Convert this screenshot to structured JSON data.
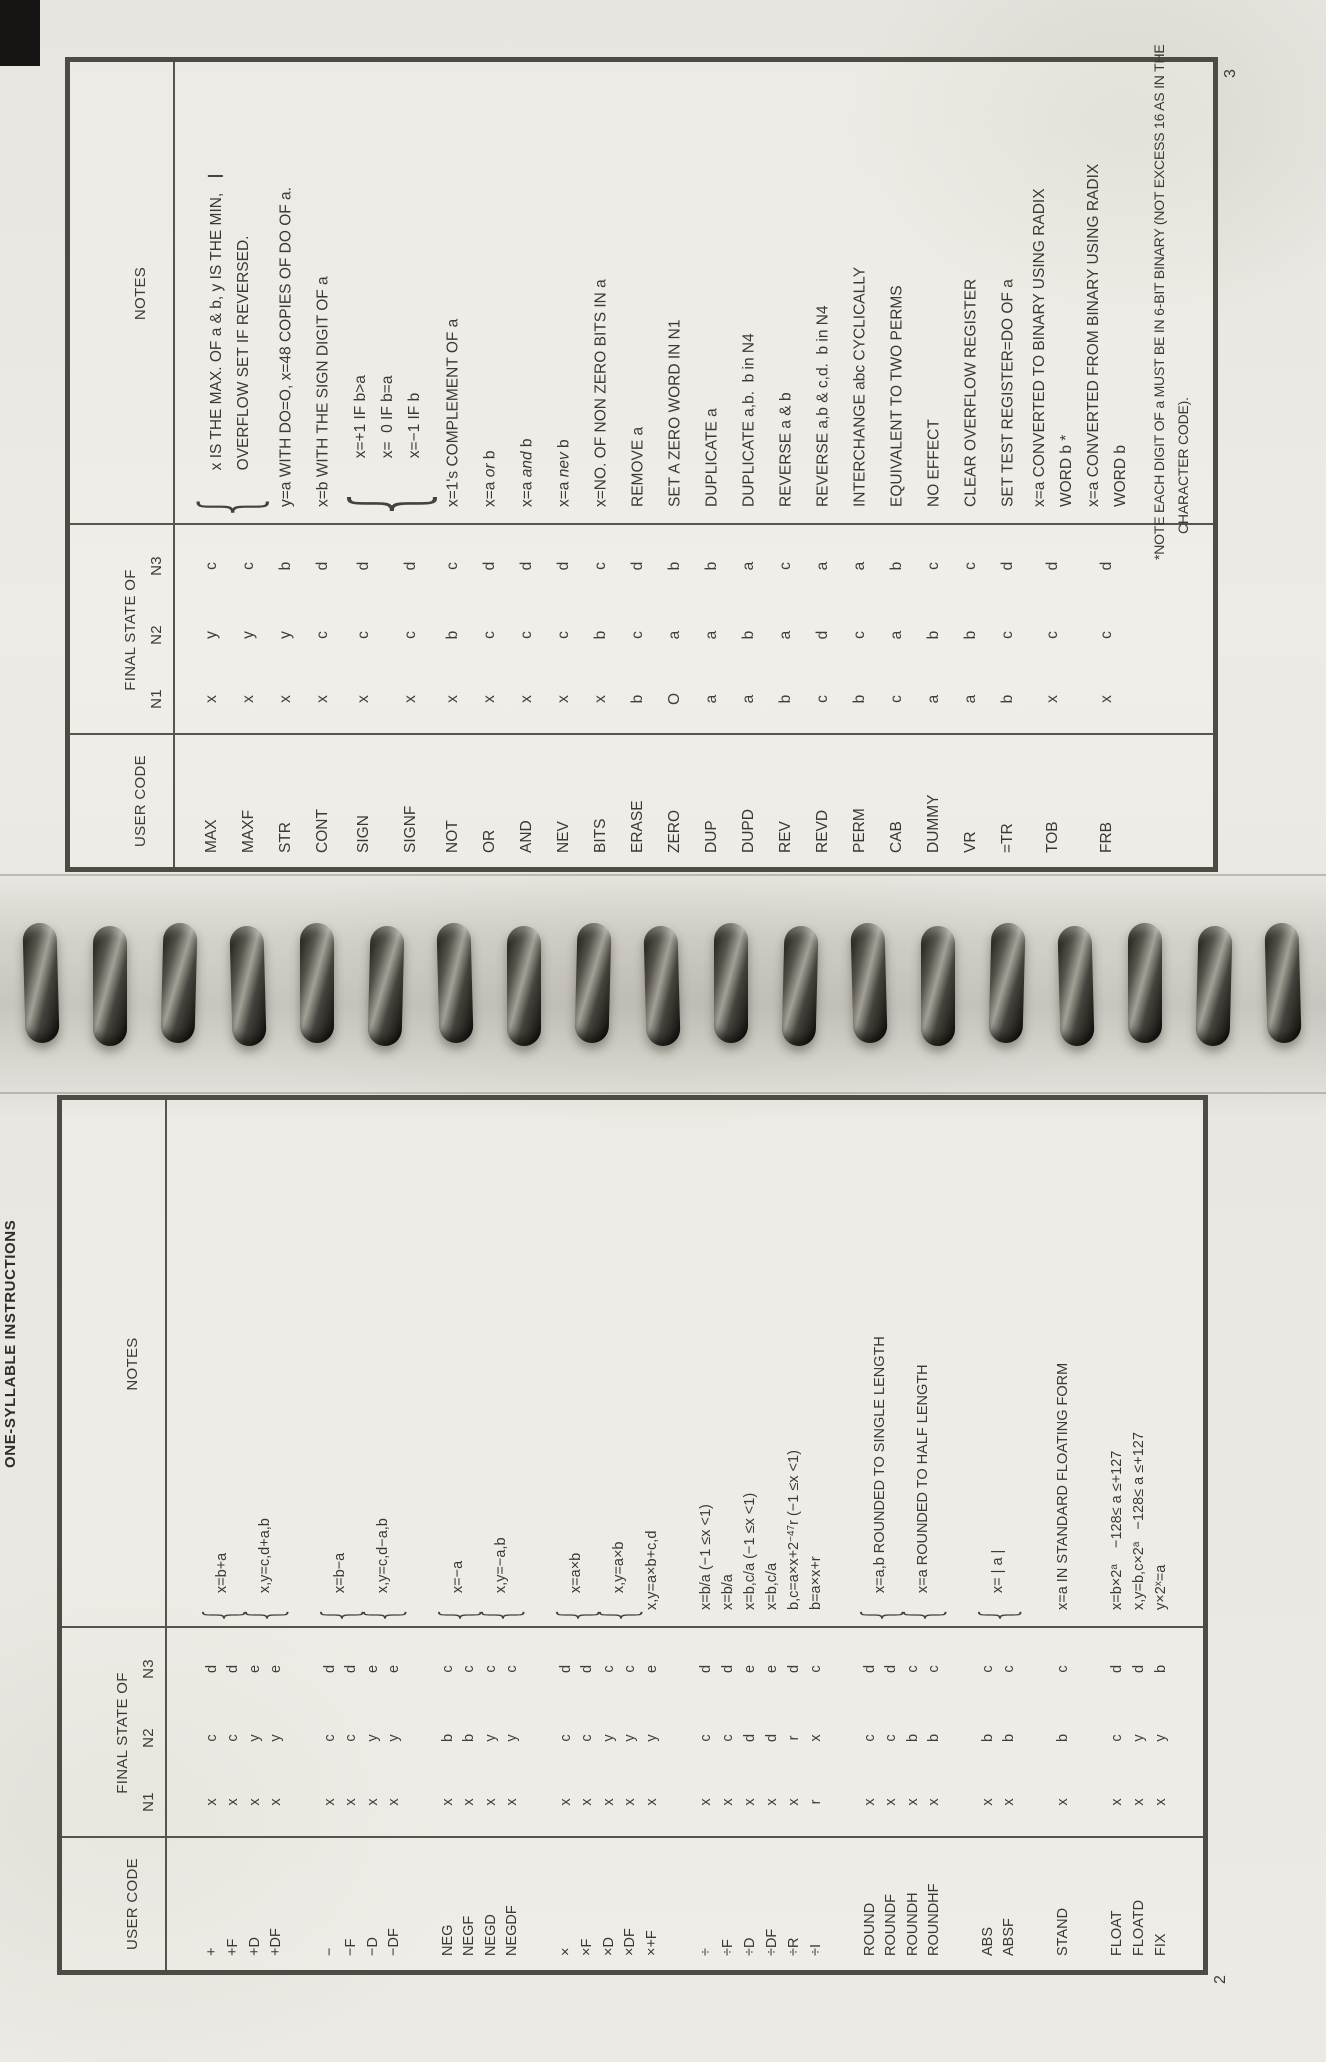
{
  "page": {
    "title": "ONE-SYLLABLE INSTRUCTIONS",
    "left_page_number": "2",
    "right_page_number": "3"
  },
  "headers": {
    "user_code": "USER CODE",
    "final_state": "FINAL STATE OF",
    "n1": "N1",
    "n2": "N2",
    "n3": "N3",
    "notes": "NOTES"
  },
  "table_left": {
    "sections": [
      {
        "groups": [
          {
            "rows": [
              [
                "+",
                "x",
                "c",
                "d"
              ],
              [
                "+F",
                "x",
                "c",
                "d"
              ]
            ],
            "note": [
              "x=b+a"
            ]
          },
          {
            "rows": [
              [
                "+D",
                "x",
                "y",
                "e"
              ],
              [
                "+DF",
                "x",
                "y",
                "e"
              ]
            ],
            "note": [
              "x,y=c,d+a,b"
            ]
          }
        ]
      },
      {
        "groups": [
          {
            "rows": [
              [
                "−",
                "x",
                "c",
                "d"
              ],
              [
                "−F",
                "x",
                "c",
                "d"
              ]
            ],
            "note": [
              "x=b−a"
            ]
          },
          {
            "rows": [
              [
                "−D",
                "x",
                "y",
                "e"
              ],
              [
                "−DF",
                "x",
                "y",
                "e"
              ]
            ],
            "note": [
              "x,y=c,d−a,b"
            ]
          }
        ]
      },
      {
        "groups": [
          {
            "rows": [
              [
                "NEG",
                "x",
                "b",
                "c"
              ],
              [
                "NEGF",
                "x",
                "b",
                "c"
              ]
            ],
            "note": [
              "x=−a"
            ]
          },
          {
            "rows": [
              [
                "NEGD",
                "x",
                "y",
                "c"
              ],
              [
                "NEGDF",
                "x",
                "y",
                "c"
              ]
            ],
            "note": [
              "x,y=−a,b"
            ]
          }
        ]
      },
      {
        "groups": [
          {
            "rows": [
              [
                "×",
                "x",
                "c",
                "d"
              ],
              [
                "×F",
                "x",
                "c",
                "d"
              ]
            ],
            "note": [
              "x=a×b"
            ]
          },
          {
            "rows": [
              [
                "×D",
                "x",
                "y",
                "c"
              ],
              [
                "×DF",
                "x",
                "y",
                "c"
              ]
            ],
            "note": [
              "x,y=a×b"
            ]
          },
          {
            "rows": [
              [
                "×+F",
                "x",
                "y",
                "e"
              ]
            ],
            "note": [
              "x,y=a×b+c,d"
            ]
          }
        ]
      },
      {
        "groups": [
          {
            "rows": [
              [
                "÷",
                "x",
                "c",
                "d"
              ]
            ],
            "note": [
              "x=b/a (−1 ≤x <1)"
            ]
          },
          {
            "rows": [
              [
                "÷F",
                "x",
                "c",
                "d"
              ]
            ],
            "note": [
              "x=b/a"
            ]
          },
          {
            "rows": [
              [
                "÷D",
                "x",
                "d",
                "e"
              ]
            ],
            "note": [
              "x=b,c/a (−1 ≤x <1)"
            ]
          },
          {
            "rows": [
              [
                "÷DF",
                "x",
                "d",
                "e"
              ]
            ],
            "note": [
              "x=b,c/a"
            ]
          },
          {
            "rows": [
              [
                "÷R",
                "x",
                "r",
                "d"
              ]
            ],
            "note": [
              "b,c=a×x+2<sup>−47</sup>r (−1 ≤x <1)"
            ]
          },
          {
            "rows": [
              [
                "÷I",
                "r",
                "x",
                "c"
              ]
            ],
            "note": [
              "b=a×x+r"
            ]
          }
        ]
      },
      {
        "groups": [
          {
            "rows": [
              [
                "ROUND",
                "x",
                "c",
                "d"
              ],
              [
                "ROUNDF",
                "x",
                "c",
                "d"
              ]
            ],
            "note": [
              "x=a,b ROUNDED TO SINGLE LENGTH"
            ]
          },
          {
            "rows": [
              [
                "ROUNDH",
                "x",
                "b",
                "c"
              ],
              [
                "ROUNDHF",
                "x",
                "b",
                "c"
              ]
            ],
            "note": [
              "x=a ROUNDED TO HALF LENGTH"
            ]
          }
        ]
      },
      {
        "groups": [
          {
            "rows": [
              [
                "ABS",
                "x",
                "b",
                "c"
              ],
              [
                "ABSF",
                "x",
                "b",
                "c"
              ]
            ],
            "note": [
              "x= | a |"
            ]
          }
        ]
      },
      {
        "groups": [
          {
            "rows": [
              [
                "STAND",
                "x",
                "b",
                "c"
              ]
            ],
            "note": [
              "x=a IN STANDARD FLOATING FORM"
            ]
          }
        ]
      },
      {
        "groups": [
          {
            "rows": [
              [
                "FLOAT",
                "x",
                "c",
                "d"
              ]
            ],
            "note": [
              "x=b×2<sup>a</sup>    −128≤ a ≤+127"
            ]
          },
          {
            "rows": [
              [
                "FLOATD",
                "x",
                "y",
                "d"
              ]
            ],
            "note": [
              "x,y=b,c×2<sup>a</sup>   −128≤ a ≤+127"
            ]
          },
          {
            "rows": [
              [
                "FIX",
                "x",
                "y",
                "b"
              ]
            ],
            "note": [
              "y×2<sup>x</sup>=a"
            ]
          }
        ]
      }
    ]
  },
  "table_right": {
    "sections": [
      {
        "groups": [
          {
            "rows": [
              [
                "MAX",
                "x",
                "y",
                "c"
              ],
              [
                "MAXF",
                "x",
                "y",
                "c"
              ]
            ],
            "note": [
              "x IS THE MAX. OF a & b, y IS THE MIN,",
              "OVERFLOW SET IF REVERSED."
            ],
            "bar": true
          },
          {
            "rows": [
              [
                "STR",
                "x",
                "y",
                "b"
              ]
            ],
            "note": [
              "y=a WITH DO=O, x=48 COPIES OF DO OF a."
            ]
          },
          {
            "rows": [
              [
                "CONT",
                "x",
                "c",
                "d"
              ]
            ],
            "note": [
              "x=b WITH THE SIGN DIGIT OF a"
            ]
          },
          {
            "rows": [
              [
                "SIGN",
                "x",
                "c",
                "d"
              ],
              [
                "SIGNF",
                "x",
                "c",
                "d"
              ]
            ],
            "note": [
              "x=+1 IF b>a",
              "x=  0 IF b=a",
              "x=−1 IF b<a"
            ]
          },
          {
            "rows": [
              [
                "NOT",
                "x",
                "b",
                "c"
              ]
            ],
            "note": [
              "x=1's COMPLEMENT OF a"
            ]
          },
          {
            "rows": [
              [
                "OR",
                "x",
                "c",
                "d"
              ]
            ],
            "note": [
              "x=a <i>or</i> b"
            ]
          },
          {
            "rows": [
              [
                "AND",
                "x",
                "c",
                "d"
              ]
            ],
            "note": [
              "x=a <i>and</i> b"
            ]
          },
          {
            "rows": [
              [
                "NEV",
                "x",
                "c",
                "d"
              ]
            ],
            "note": [
              "x=a <i>nev</i> b"
            ]
          },
          {
            "rows": [
              [
                "BITS",
                "x",
                "b",
                "c"
              ]
            ],
            "note": [
              "x=NO. OF NON ZERO BITS IN a"
            ]
          },
          {
            "rows": [
              [
                "ERASE",
                "b",
                "c",
                "d"
              ]
            ],
            "note": [
              "REMOVE a"
            ]
          },
          {
            "rows": [
              [
                "ZERO",
                "O",
                "a",
                "b"
              ]
            ],
            "note": [
              "SET A ZERO WORD IN N1"
            ]
          },
          {
            "rows": [
              [
                "DUP",
                "a",
                "a",
                "b"
              ]
            ],
            "note": [
              "DUPLICATE a"
            ]
          },
          {
            "rows": [
              [
                "DUPD",
                "a",
                "b",
                "a"
              ]
            ],
            "note": [
              "DUPLICATE a,b.  b in N4"
            ]
          },
          {
            "rows": [
              [
                "REV",
                "b",
                "a",
                "c"
              ]
            ],
            "note": [
              "REVERSE a & b"
            ]
          },
          {
            "rows": [
              [
                "REVD",
                "c",
                "d",
                "a"
              ]
            ],
            "note": [
              "REVERSE a,b & c,d.  b in N4"
            ]
          },
          {
            "rows": [
              [
                "PERM",
                "b",
                "c",
                "a"
              ]
            ],
            "note": [
              "INTERCHANGE abc CYCLICALLY"
            ]
          },
          {
            "rows": [
              [
                "CAB",
                "c",
                "a",
                "b"
              ]
            ],
            "note": [
              "EQUIVALENT TO TWO PERMS"
            ]
          },
          {
            "rows": [
              [
                "DUMMY",
                "a",
                "b",
                "c"
              ]
            ],
            "note": [
              "NO EFFECT"
            ]
          },
          {
            "rows": [
              [
                "VR",
                "a",
                "b",
                "c"
              ]
            ],
            "note": [
              "CLEAR OVERFLOW REGISTER"
            ]
          },
          {
            "rows": [
              [
                "=TR",
                "b",
                "c",
                "d"
              ]
            ],
            "note": [
              "SET TEST REGISTER=DO OF a"
            ]
          },
          {
            "rows": [
              [
                "TOB",
                "x",
                "c",
                "d"
              ]
            ],
            "note": [
              "x=a CONVERTED TO BINARY USING RADIX",
              "WORD b *"
            ]
          },
          {
            "rows": [
              [
                "FRB",
                "x",
                "c",
                "d"
              ]
            ],
            "note": [
              "x=a CONVERTED FROM BINARY USING RADIX",
              "WORD b"
            ]
          }
        ]
      }
    ],
    "footnote": [
      "*NOTE EACH DIGIT OF a MUST BE IN 6-BIT BINARY (NOT EXCESS 16 AS IN THE",
      "CHARACTER CODE)."
    ]
  }
}
